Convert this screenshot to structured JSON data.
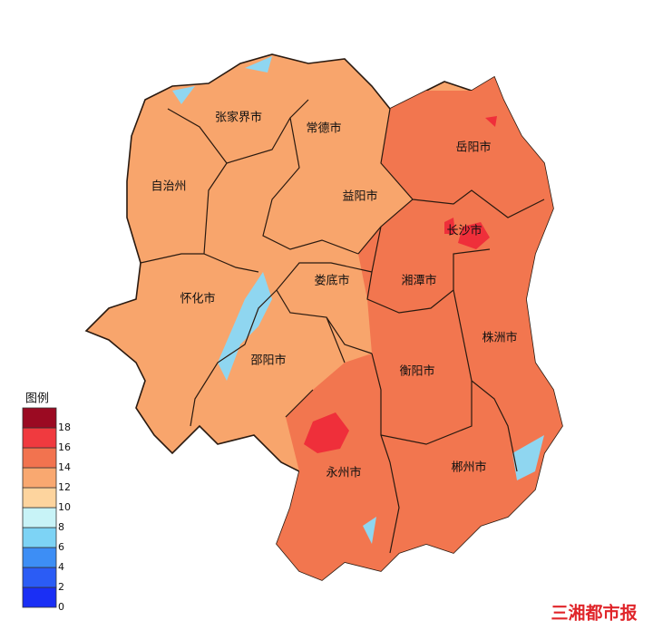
{
  "map": {
    "regions": [
      {
        "label": "张家界市"
      },
      {
        "label": "常德市"
      },
      {
        "label": "岳阳市"
      },
      {
        "label": "自治州"
      },
      {
        "label": "益阳市"
      },
      {
        "label": "长沙市"
      },
      {
        "label": "娄底市"
      },
      {
        "label": "湘潭市"
      },
      {
        "label": "怀化市"
      },
      {
        "label": "株洲市"
      },
      {
        "label": "邵阳市"
      },
      {
        "label": "衡阳市"
      },
      {
        "label": "永州市"
      },
      {
        "label": "郴州市"
      }
    ],
    "legend": {
      "title": "图例",
      "ticks": [
        0,
        2,
        4,
        6,
        8,
        10,
        12,
        14,
        16,
        18
      ],
      "colors": [
        "#1a2ff5",
        "#2b5cf5",
        "#3d8ef5",
        "#7dd3f5",
        "#c8f3f7",
        "#fdd49e",
        "#f9a870",
        "#f2734f",
        "#f03a3f",
        "#9b0a22"
      ]
    },
    "watermark": "三湘都市报"
  }
}
